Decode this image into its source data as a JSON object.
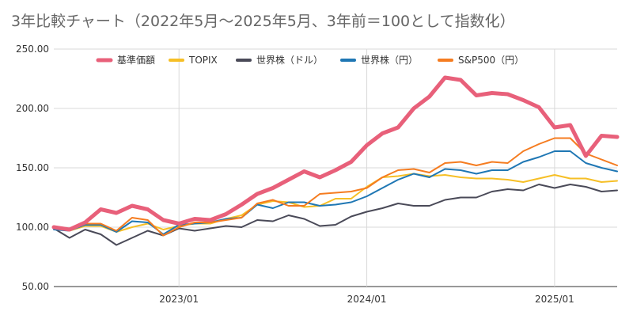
{
  "chart_data": {
    "type": "line",
    "title": "3年比較チャート（2022年5月～2025年5月、3年前＝100として指数化）",
    "xlabel": "",
    "ylabel": "",
    "ylim": [
      50,
      250
    ],
    "yticks": [
      "50.00",
      "100.00",
      "150.00",
      "200.00",
      "250.00"
    ],
    "xticks": [
      {
        "label": "2023/01",
        "x": "2023-01"
      },
      {
        "label": "2024/01",
        "x": "2024-01"
      },
      {
        "label": "2025/01",
        "x": "2025-01"
      }
    ],
    "grid": true,
    "legend_position": "top",
    "x": [
      "2022-05",
      "2022-06",
      "2022-07",
      "2022-08",
      "2022-09",
      "2022-10",
      "2022-11",
      "2022-12",
      "2023-01",
      "2023-02",
      "2023-03",
      "2023-04",
      "2023-05",
      "2023-06",
      "2023-07",
      "2023-08",
      "2023-09",
      "2023-10",
      "2023-11",
      "2023-12",
      "2024-01",
      "2024-02",
      "2024-03",
      "2024-04",
      "2024-05",
      "2024-06",
      "2024-07",
      "2024-08",
      "2024-09",
      "2024-10",
      "2024-11",
      "2024-12",
      "2025-01",
      "2025-02",
      "2025-03",
      "2025-04",
      "2025-05"
    ],
    "series": [
      {
        "name": "基準価額",
        "color": "#e8607a",
        "values": [
          100,
          98,
          104,
          115,
          112,
          118,
          115,
          106,
          103,
          107,
          106,
          111,
          119,
          128,
          133,
          140,
          147,
          142,
          148,
          155,
          169,
          179,
          184,
          200,
          210,
          226,
          224,
          211,
          213,
          212,
          207,
          201,
          184,
          186,
          160,
          177,
          176
        ]
      },
      {
        "name": "TOPIX",
        "color": "#f6bf26",
        "values": [
          100,
          97,
          101,
          101,
          96,
          100,
          103,
          98,
          101,
          103,
          103,
          107,
          110,
          119,
          122,
          121,
          117,
          118,
          124,
          124,
          134,
          142,
          143,
          145,
          143,
          144,
          142,
          141,
          141,
          140,
          138,
          141,
          144,
          141,
          141,
          138,
          139
        ]
      },
      {
        "name": "世界株（ドル）",
        "color": "#4a4a58",
        "values": [
          99,
          91,
          98,
          94,
          85,
          91,
          97,
          93,
          99,
          97,
          99,
          101,
          100,
          106,
          105,
          110,
          107,
          101,
          102,
          109,
          113,
          116,
          120,
          118,
          118,
          123,
          125,
          125,
          130,
          132,
          131,
          136,
          133,
          136,
          134,
          130,
          131
        ]
      },
      {
        "name": "世界株（円）",
        "color": "#1f77b4",
        "values": [
          98,
          97,
          102,
          102,
          96,
          105,
          104,
          94,
          102,
          103,
          104,
          107,
          108,
          119,
          116,
          121,
          121,
          118,
          119,
          121,
          126,
          133,
          140,
          145,
          142,
          149,
          148,
          145,
          148,
          148,
          155,
          159,
          164,
          164,
          154,
          150,
          147
        ]
      },
      {
        "name": "S&P500（円）",
        "color": "#f57c20",
        "values": [
          100,
          97,
          103,
          103,
          97,
          108,
          106,
          93,
          100,
          104,
          104,
          106,
          108,
          120,
          123,
          118,
          118,
          128,
          129,
          130,
          133,
          142,
          148,
          149,
          146,
          154,
          155,
          152,
          155,
          154,
          164,
          170,
          175,
          175,
          162,
          157,
          152
        ]
      }
    ]
  }
}
